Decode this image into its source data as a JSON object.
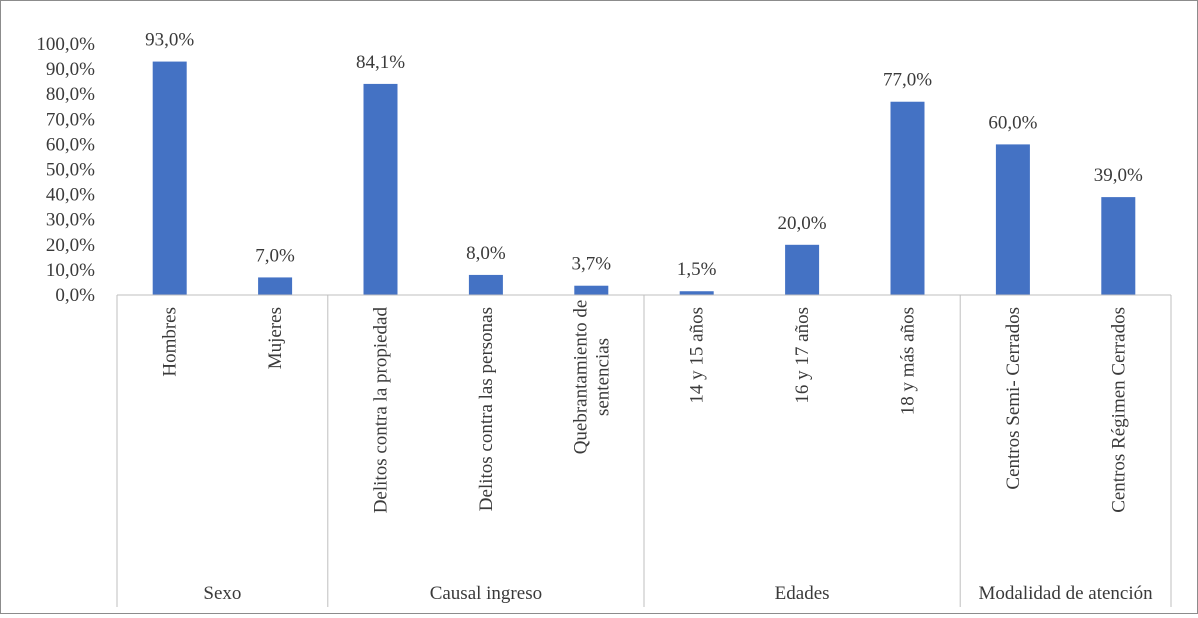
{
  "chart_data": {
    "type": "bar",
    "title": "",
    "xlabel": "",
    "ylabel": "",
    "ylim": [
      0,
      100
    ],
    "y_ticks": [
      "0,0%",
      "10,0%",
      "20,0%",
      "30,0%",
      "40,0%",
      "50,0%",
      "60,0%",
      "70,0%",
      "80,0%",
      "90,0%",
      "100,0%"
    ],
    "grid": false,
    "legend": "none",
    "bar_color": "#4472C4",
    "groups": [
      {
        "label": "Sexo",
        "categories": [
          "Hombres",
          "Mujeres"
        ]
      },
      {
        "label": "Causal ingreso",
        "categories": [
          "Delitos contra la propiedad",
          "Delitos contra las personas",
          "Quebrantamiento de sentencias"
        ]
      },
      {
        "label": "Edades",
        "categories": [
          "14 y 15 años",
          "16 y 17 años",
          "18 y más años"
        ]
      },
      {
        "label": "Modalidad de atención",
        "categories": [
          "Centros Semi- Cerrados",
          "Centros Régimen Cerrados"
        ]
      }
    ],
    "categories": [
      "Hombres",
      "Mujeres",
      "Delitos contra la propiedad",
      "Delitos contra las personas",
      "Quebrantamiento de sentencias",
      "14 y 15 años",
      "16 y 17 años",
      "18 y más años",
      "Centros Semi- Cerrados",
      "Centros Régimen Cerrados"
    ],
    "values": [
      93.0,
      7.0,
      84.1,
      8.0,
      3.7,
      1.5,
      20.0,
      77.0,
      60.0,
      39.0
    ],
    "data_labels": [
      "93,0%",
      "7,0%",
      "84,1%",
      "8,0%",
      "3,7%",
      "1,5%",
      "20,0%",
      "77,0%",
      "60,0%",
      "39,0%"
    ]
  }
}
